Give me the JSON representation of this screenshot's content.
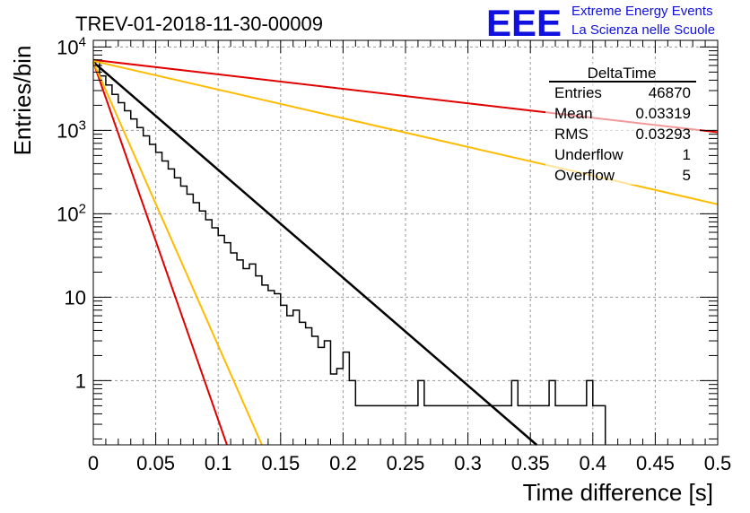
{
  "title": "TREV-01-2018-11-30-00009",
  "logo": {
    "text": "EEE",
    "line1": "Extreme Energy Events",
    "line2": "La Scienza nelle Scuole",
    "color": "#1010e0"
  },
  "stats": {
    "name": "DeltaTime",
    "rows": [
      {
        "label": "Entries",
        "value": "46870"
      },
      {
        "label": "Mean",
        "value": "0.03319"
      },
      {
        "label": "RMS",
        "value": "0.03293"
      },
      {
        "label": "Underflow",
        "value": "1"
      },
      {
        "label": "Overflow",
        "value": "5"
      }
    ]
  },
  "chart_data": {
    "type": "line",
    "title": "TREV-01-2018-11-30-00009",
    "xlabel": "Time difference [s]",
    "ylabel": "Entries/bin",
    "xlim": [
      0,
      0.5
    ],
    "ylim": [
      0.17,
      12000
    ],
    "yscale": "log",
    "grid": true,
    "x_ticks": [
      "0",
      "0.05",
      "0.1",
      "0.15",
      "0.2",
      "0.25",
      "0.3",
      "0.35",
      "0.4",
      "0.45",
      "0.5"
    ],
    "y_ticks": [
      "1",
      "10",
      "10^2",
      "10^3",
      "10^4"
    ],
    "histogram": {
      "name": "DeltaTime",
      "color": "#000000",
      "bin_width": 0.005,
      "counts": [
        6600,
        4500,
        3500,
        2700,
        2150,
        1720,
        1370,
        1080,
        860,
        680,
        545,
        430,
        345,
        270,
        215,
        172,
        136,
        108,
        85,
        68,
        55,
        45,
        34,
        28,
        22,
        25,
        18,
        14,
        12,
        11,
        8,
        6,
        7,
        5,
        4.3,
        3.4,
        2.5,
        3,
        1.2,
        1.4,
        2.2,
        1,
        0.5,
        0.5,
        0.5,
        0.5,
        0.5,
        0.5,
        0.5,
        0.5,
        0.5,
        0.5,
        1,
        0.5,
        0.5,
        0.5,
        0.5,
        0.5,
        0.5,
        0.5,
        0.5,
        0.5,
        0.5,
        0.5,
        0.5,
        0.5,
        0.5,
        1,
        0.5,
        0.5,
        0.5,
        0.5,
        0.5,
        1,
        0.5,
        0.5,
        0.5,
        0.5,
        0.5,
        1,
        0.5,
        0.5
      ]
    },
    "series": [
      {
        "color": "#000000",
        "width": 2.5,
        "x": [
          0,
          0.355
        ],
        "y": [
          6600,
          0.17
        ]
      },
      {
        "color": "#e00000",
        "width": 2,
        "x": [
          0,
          0.5
        ],
        "y": [
          7000,
          950
        ]
      },
      {
        "color": "#ffbb00",
        "width": 2,
        "x": [
          0,
          0.5
        ],
        "y": [
          6800,
          130
        ]
      },
      {
        "color": "#e00000",
        "width": 2,
        "x": [
          0,
          0.107
        ],
        "y": [
          6600,
          0.17
        ]
      },
      {
        "color": "#ffbb00",
        "width": 2,
        "x": [
          0,
          0.135
        ],
        "y": [
          6600,
          0.17
        ]
      }
    ]
  }
}
